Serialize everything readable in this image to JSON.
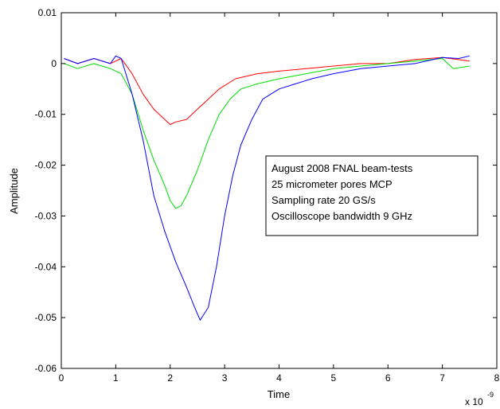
{
  "chart_data": {
    "type": "line",
    "xlabel": "Time",
    "ylabel": "Amplitude",
    "x_exponent": "x 10",
    "x_exponent_power": "-9",
    "xlim": [
      0,
      8
    ],
    "ylim": [
      -0.06,
      0.01
    ],
    "xticks": [
      0,
      1,
      2,
      3,
      4,
      5,
      6,
      7,
      8
    ],
    "xtick_labels": [
      "0",
      "1",
      "2",
      "3",
      "4",
      "5",
      "6",
      "7",
      "8"
    ],
    "yticks": [
      0.01,
      0,
      -0.01,
      -0.02,
      -0.03,
      -0.04,
      -0.05,
      -0.06
    ],
    "ytick_labels": [
      "0.01",
      "0",
      "-0.01",
      "-0.02",
      "-0.03",
      "-0.04",
      "-0.05",
      "-0.06"
    ],
    "grid": false,
    "annotation_lines": [
      "August 2008 FNAL beam-tests",
      "25 micrometer pores MCP",
      "Sampling rate 20 GS/s",
      "Oscilloscope bandwidth 9 GHz"
    ],
    "series": [
      {
        "color": "#ff0000",
        "points": [
          [
            0.05,
            0.001
          ],
          [
            0.3,
            0.0
          ],
          [
            0.6,
            0.001
          ],
          [
            0.9,
            0.0
          ],
          [
            1.1,
            0.001
          ],
          [
            1.3,
            -0.002
          ],
          [
            1.5,
            -0.006
          ],
          [
            1.7,
            -0.009
          ],
          [
            1.9,
            -0.011
          ],
          [
            2.0,
            -0.012
          ],
          [
            2.1,
            -0.0115
          ],
          [
            2.3,
            -0.011
          ],
          [
            2.5,
            -0.009
          ],
          [
            2.7,
            -0.007
          ],
          [
            2.9,
            -0.005
          ],
          [
            3.2,
            -0.003
          ],
          [
            3.6,
            -0.002
          ],
          [
            4.0,
            -0.0015
          ],
          [
            4.5,
            -0.001
          ],
          [
            5.0,
            -0.0005
          ],
          [
            5.5,
            0.0
          ],
          [
            6.0,
            0.0
          ],
          [
            6.5,
            0.0008
          ],
          [
            7.0,
            0.0012
          ],
          [
            7.5,
            0.0005
          ]
        ]
      },
      {
        "color": "#00dd00",
        "points": [
          [
            0.05,
            0.0
          ],
          [
            0.3,
            -0.001
          ],
          [
            0.6,
            0.0
          ],
          [
            0.9,
            -0.001
          ],
          [
            1.1,
            -0.002
          ],
          [
            1.3,
            -0.006
          ],
          [
            1.5,
            -0.013
          ],
          [
            1.7,
            -0.019
          ],
          [
            1.9,
            -0.024
          ],
          [
            2.0,
            -0.027
          ],
          [
            2.1,
            -0.0285
          ],
          [
            2.2,
            -0.028
          ],
          [
            2.3,
            -0.026
          ],
          [
            2.5,
            -0.021
          ],
          [
            2.7,
            -0.015
          ],
          [
            2.9,
            -0.01
          ],
          [
            3.1,
            -0.007
          ],
          [
            3.3,
            -0.005
          ],
          [
            3.6,
            -0.004
          ],
          [
            4.0,
            -0.003
          ],
          [
            4.5,
            -0.002
          ],
          [
            5.0,
            -0.001
          ],
          [
            5.5,
            -0.0005
          ],
          [
            6.0,
            0.0
          ],
          [
            6.5,
            0.0005
          ],
          [
            7.0,
            0.001
          ],
          [
            7.2,
            -0.001
          ],
          [
            7.5,
            -0.0005
          ]
        ]
      },
      {
        "color": "#0000ff",
        "points": [
          [
            0.05,
            0.001
          ],
          [
            0.3,
            0.0
          ],
          [
            0.6,
            0.001
          ],
          [
            0.9,
            0.0
          ],
          [
            1.0,
            0.0015
          ],
          [
            1.1,
            0.001
          ],
          [
            1.3,
            -0.006
          ],
          [
            1.5,
            -0.015
          ],
          [
            1.7,
            -0.026
          ],
          [
            1.9,
            -0.033
          ],
          [
            2.1,
            -0.039
          ],
          [
            2.3,
            -0.044
          ],
          [
            2.45,
            -0.048
          ],
          [
            2.55,
            -0.0505
          ],
          [
            2.7,
            -0.048
          ],
          [
            2.85,
            -0.04
          ],
          [
            3.0,
            -0.03
          ],
          [
            3.15,
            -0.022
          ],
          [
            3.3,
            -0.016
          ],
          [
            3.5,
            -0.011
          ],
          [
            3.7,
            -0.007
          ],
          [
            4.0,
            -0.005
          ],
          [
            4.3,
            -0.004
          ],
          [
            4.6,
            -0.003
          ],
          [
            5.0,
            -0.002
          ],
          [
            5.5,
            -0.001
          ],
          [
            6.0,
            -0.0005
          ],
          [
            6.5,
            0.0
          ],
          [
            7.0,
            0.0012
          ],
          [
            7.3,
            0.001
          ],
          [
            7.5,
            0.0015
          ]
        ]
      }
    ]
  }
}
